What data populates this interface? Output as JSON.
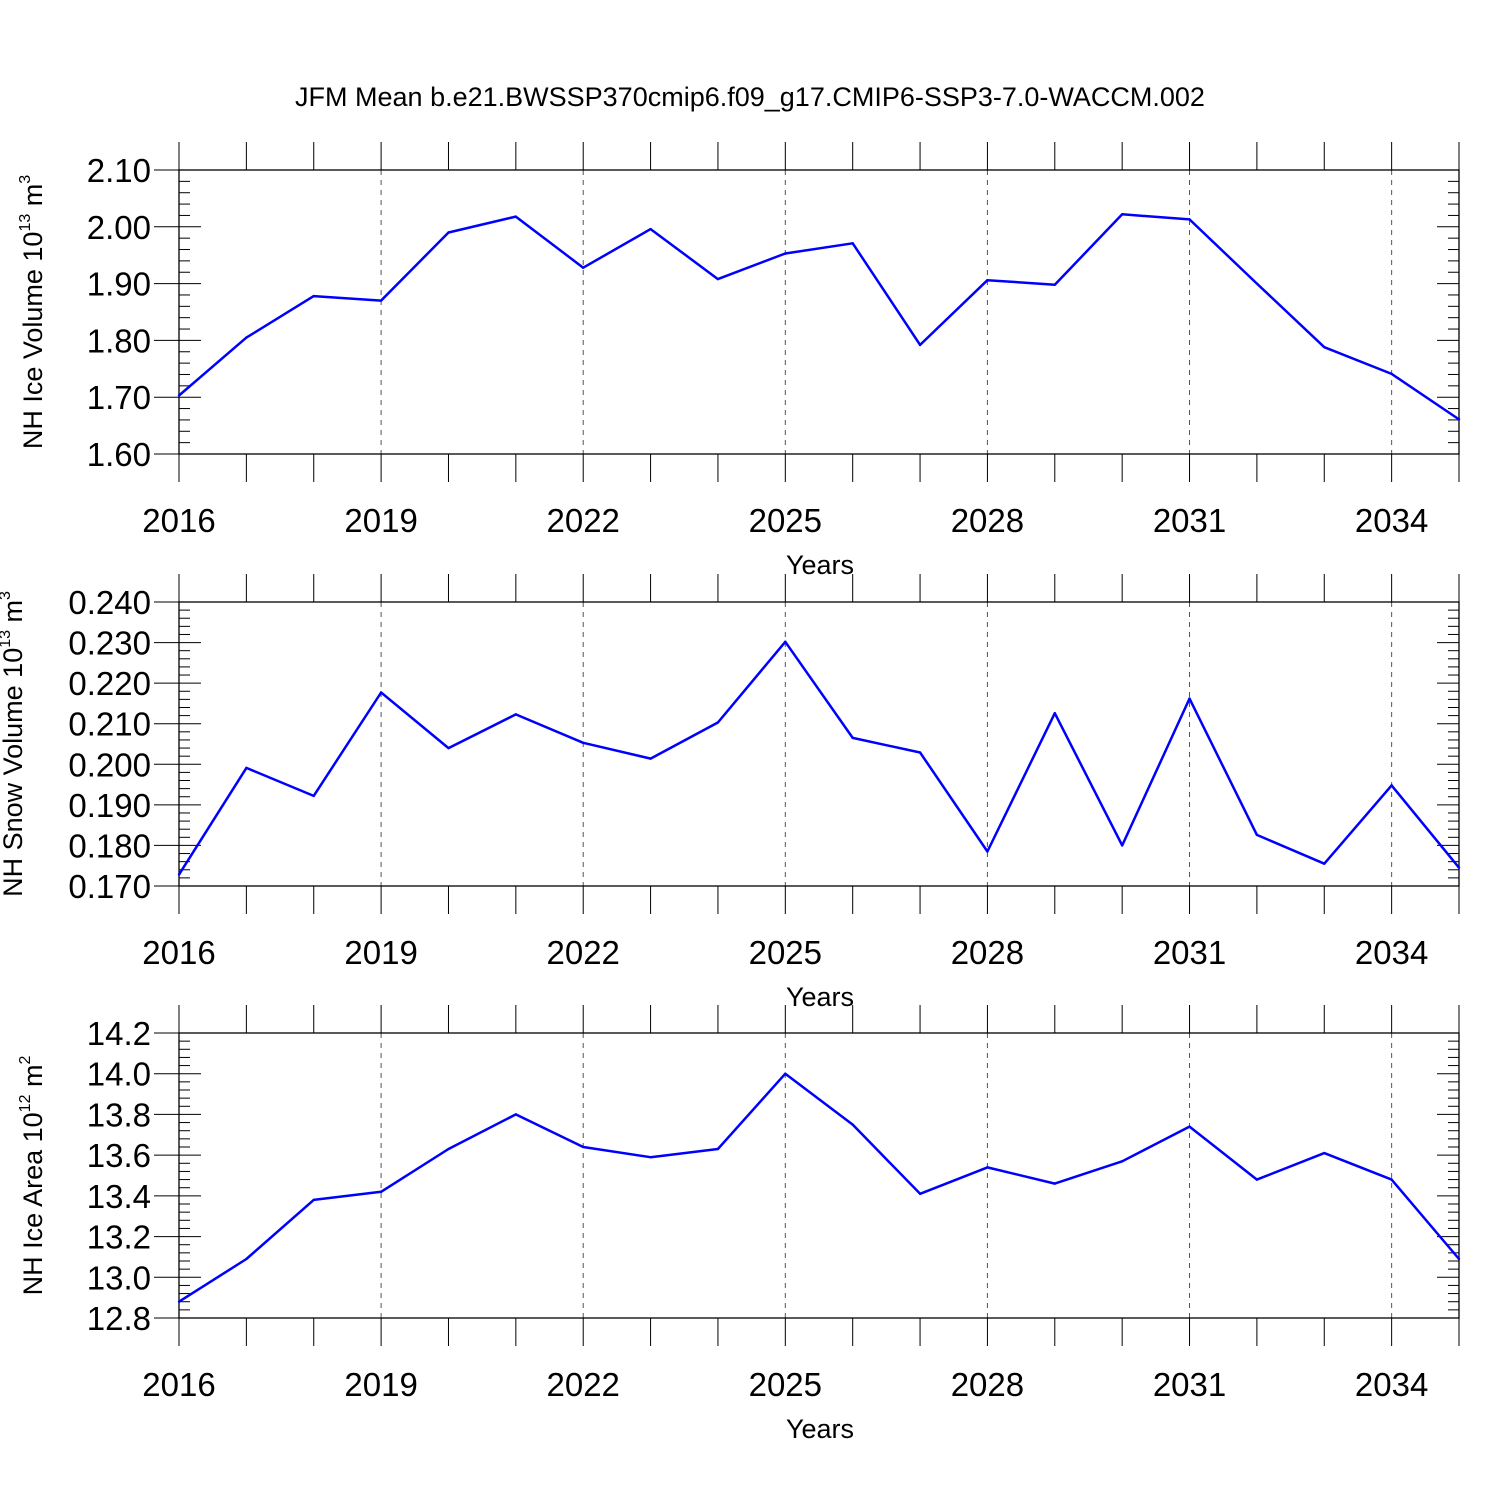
{
  "title": "JFM Mean b.e21.BWSSP370cmip6.f09_g17.CMIP6-SSP3-7.0-WACCM.002",
  "colors": {
    "line": "#0000ff",
    "axis": "#000000",
    "grid": "#555555"
  },
  "chart_data": [
    {
      "type": "line",
      "ylabel": {
        "text": "NH Ice Volume 10",
        "sup": "13",
        "unit": " m",
        "unit_sup": "3"
      },
      "xlabel": "Years",
      "x": [
        2016,
        2017,
        2018,
        2019,
        2020,
        2021,
        2022,
        2023,
        2024,
        2025,
        2026,
        2027,
        2028,
        2029,
        2030,
        2031,
        2032,
        2033,
        2034,
        2035
      ],
      "xticks": [
        "2016",
        "2019",
        "2022",
        "2025",
        "2028",
        "2031",
        "2034"
      ],
      "xlim": [
        2016,
        2035
      ],
      "ylim": [
        1.6,
        2.1
      ],
      "yticks": [
        "1.60",
        "1.70",
        "1.80",
        "1.90",
        "2.00",
        "2.10"
      ],
      "series": [
        {
          "values": [
            1.703,
            1.805,
            1.878,
            1.87,
            1.99,
            2.018,
            1.928,
            1.996,
            1.908,
            1.953,
            1.971,
            1.792,
            1.906,
            1.898,
            2.022,
            2.013,
            1.9,
            1.788,
            1.741,
            1.661
          ]
        }
      ]
    },
    {
      "type": "line",
      "ylabel": {
        "text": "NH Snow Volume 10",
        "sup": "13",
        "unit": " m",
        "unit_sup": "3"
      },
      "xlabel": "Years",
      "x": [
        2016,
        2017,
        2018,
        2019,
        2020,
        2021,
        2022,
        2023,
        2024,
        2025,
        2026,
        2027,
        2028,
        2029,
        2030,
        2031,
        2032,
        2033,
        2034,
        2035
      ],
      "xticks": [
        "2016",
        "2019",
        "2022",
        "2025",
        "2028",
        "2031",
        "2034"
      ],
      "xlim": [
        2016,
        2035
      ],
      "ylim": [
        0.17,
        0.24
      ],
      "yticks": [
        "0.170",
        "0.180",
        "0.190",
        "0.200",
        "0.210",
        "0.220",
        "0.230",
        "0.240"
      ],
      "series": [
        {
          "values": [
            0.1728,
            0.1991,
            0.1922,
            0.2177,
            0.204,
            0.2123,
            0.2053,
            0.2014,
            0.2103,
            0.2302,
            0.2065,
            0.2029,
            0.1785,
            0.2126,
            0.18,
            0.2162,
            0.1826,
            0.1755,
            0.1948,
            0.1745
          ]
        }
      ]
    },
    {
      "type": "line",
      "ylabel": {
        "text": "NH Ice Area 10",
        "sup": "12",
        "unit": " m",
        "unit_sup": "2"
      },
      "xlabel": "Years",
      "x": [
        2016,
        2017,
        2018,
        2019,
        2020,
        2021,
        2022,
        2023,
        2024,
        2025,
        2026,
        2027,
        2028,
        2029,
        2030,
        2031,
        2032,
        2033,
        2034,
        2035
      ],
      "xticks": [
        "2016",
        "2019",
        "2022",
        "2025",
        "2028",
        "2031",
        "2034"
      ],
      "xlim": [
        2016,
        2035
      ],
      "ylim": [
        12.8,
        14.2
      ],
      "yticks": [
        "12.8",
        "13.0",
        "13.2",
        "13.4",
        "13.6",
        "13.8",
        "14.0",
        "14.2"
      ],
      "series": [
        {
          "values": [
            12.88,
            13.09,
            13.38,
            13.42,
            13.63,
            13.8,
            13.64,
            13.59,
            13.63,
            14.0,
            13.75,
            13.41,
            13.54,
            13.46,
            13.57,
            13.74,
            13.48,
            13.61,
            13.48,
            13.09
          ]
        }
      ]
    }
  ]
}
